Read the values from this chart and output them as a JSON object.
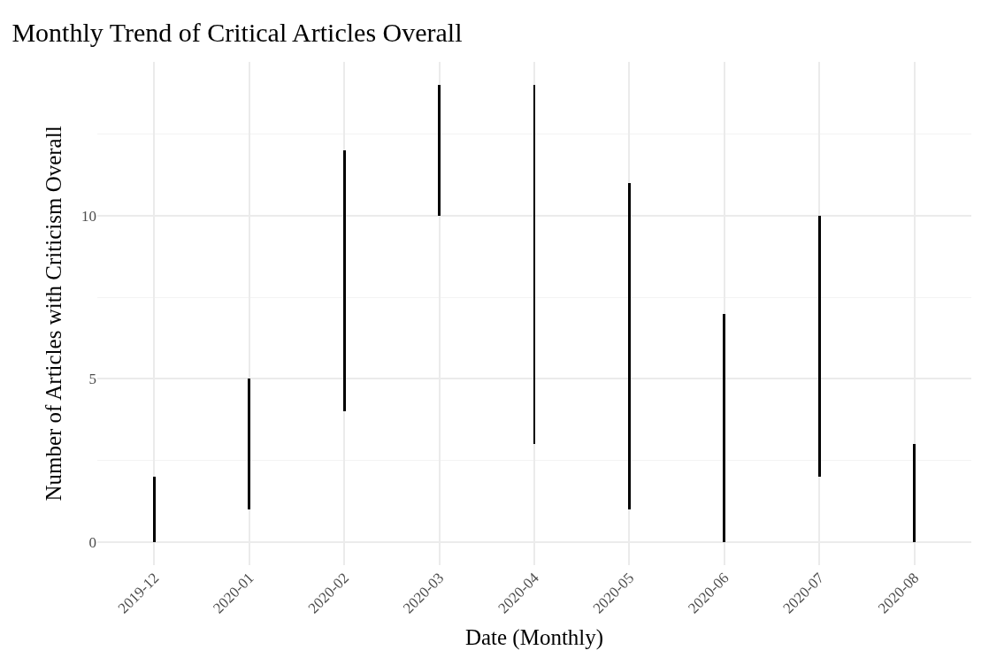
{
  "chart_data": {
    "type": "bar",
    "title": "Monthly Trend of Critical Articles Overall",
    "xlabel": "Date (Monthly)",
    "ylabel": "Number of Articles with Criticism Overall",
    "categories": [
      "2019-12",
      "2020-01",
      "2020-02",
      "2020-03",
      "2020-04",
      "2020-05",
      "2020-06",
      "2020-07",
      "2020-08"
    ],
    "base": [
      0,
      1,
      4,
      10,
      3,
      1,
      0,
      2,
      0
    ],
    "values": [
      2,
      4,
      8,
      4,
      11,
      10,
      7,
      8,
      3
    ],
    "color": "#000000",
    "ylim": [
      -0.7,
      14.7
    ],
    "yticks": [
      0,
      5,
      10
    ],
    "grid": true
  }
}
